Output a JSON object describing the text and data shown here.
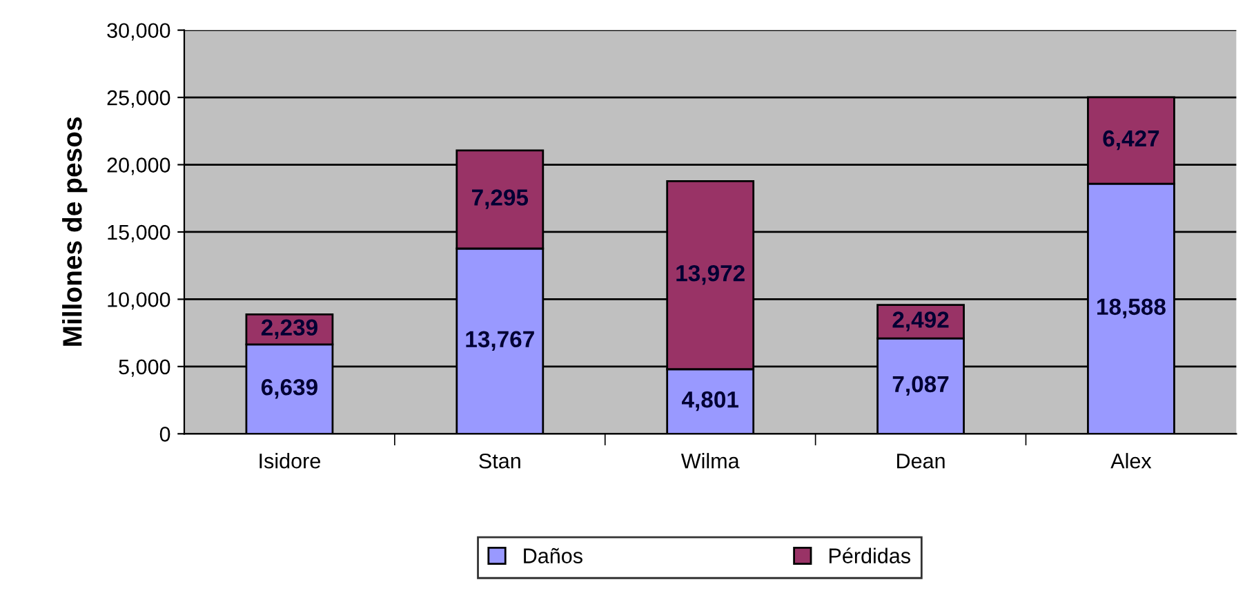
{
  "chart_data": {
    "type": "bar",
    "stacked": true,
    "ylabel": "Millones de pesos",
    "categories": [
      "Isidore",
      "Stan",
      "Wilma",
      "Dean",
      "Alex"
    ],
    "series": [
      {
        "name": "Daños",
        "color": "#9999ff",
        "values": [
          6639,
          13767,
          4801,
          7087,
          18588
        ],
        "value_labels": [
          "6,639",
          "13,767",
          "4,801",
          "7,087",
          "18,588"
        ]
      },
      {
        "name": "Pérdidas",
        "color": "#993366",
        "values": [
          2239,
          7295,
          13972,
          2492,
          6427
        ],
        "value_labels": [
          "2,239",
          "7,295",
          "13,972",
          "2,492",
          "6,427"
        ]
      }
    ],
    "grid": "y",
    "legend": "bottom",
    "ylim": [
      0,
      30000
    ],
    "yticks": [
      {
        "value": 0,
        "label": "0"
      },
      {
        "value": 5000,
        "label": "5,000"
      },
      {
        "value": 10000,
        "label": "10,000"
      },
      {
        "value": 15000,
        "label": "15,000"
      },
      {
        "value": 20000,
        "label": "20,000"
      },
      {
        "value": 25000,
        "label": "25,000"
      },
      {
        "value": 30000,
        "label": "30,000"
      }
    ]
  }
}
